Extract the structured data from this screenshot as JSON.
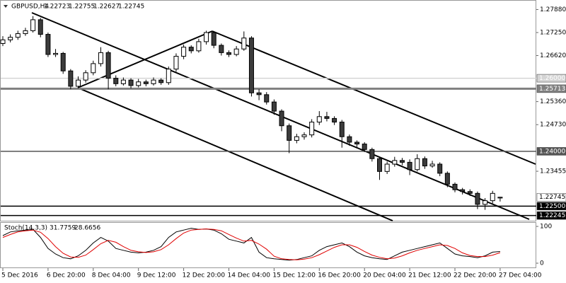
{
  "chart_data": {
    "type": "candlestick",
    "symbol": "GBPUSD,H4",
    "categories": [
      "5 Dec 2016",
      null,
      null,
      null,
      null,
      null,
      "6 Dec 20:00",
      null,
      null,
      null,
      null,
      null,
      "8 Dec 04:00",
      null,
      null,
      null,
      null,
      null,
      "9 Dec 12:00",
      null,
      null,
      null,
      null,
      null,
      "12 Dec 20:00",
      null,
      null,
      null,
      null,
      null,
      "14 Dec 04:00",
      null,
      null,
      null,
      null,
      null,
      "15 Dec 12:00",
      null,
      null,
      null,
      null,
      null,
      "16 Dec 20:00",
      null,
      null,
      null,
      null,
      null,
      "20 Dec 04:00",
      null,
      null,
      null,
      null,
      null,
      "21 Dec 12:00",
      null,
      null,
      null,
      null,
      null,
      "22 Dec 20:00",
      null,
      null,
      null,
      null,
      null,
      "27 Dec 04:00"
    ],
    "open": [
      1.2695,
      1.2705,
      1.2712,
      1.2722,
      1.273,
      1.276,
      1.272,
      1.2665,
      1.2668,
      1.262,
      1.2578,
      1.2595,
      1.2615,
      1.264,
      1.267,
      1.26,
      1.2585,
      1.2595,
      1.258,
      1.259,
      1.2585,
      1.2595,
      1.2588,
      1.2625,
      1.266,
      1.2685,
      1.2675,
      1.27,
      1.2725,
      1.269,
      1.267,
      1.2665,
      1.268,
      1.271,
      1.256,
      1.2555,
      1.2535,
      1.251,
      1.247,
      1.243,
      1.244,
      1.2445,
      1.248,
      1.2495,
      1.249,
      1.248,
      1.244,
      1.2425,
      1.242,
      1.2405,
      1.238,
      1.2345,
      1.2365,
      1.2375,
      1.237,
      1.235,
      1.238,
      1.236,
      1.2365,
      1.234,
      1.231,
      1.2295,
      1.229,
      1.2285,
      1.2255,
      1.2265,
      1.22723
    ],
    "high": [
      1.2715,
      1.272,
      1.273,
      1.2738,
      1.277,
      1.2765,
      1.2725,
      1.268,
      1.2672,
      1.2625,
      1.2605,
      1.2622,
      1.2648,
      1.2685,
      1.2675,
      1.2608,
      1.2602,
      1.26,
      1.2598,
      1.2596,
      1.2602,
      1.26,
      1.2632,
      1.2668,
      1.2692,
      1.269,
      1.2708,
      1.273,
      1.2728,
      1.2695,
      1.2676,
      1.2688,
      1.2728,
      1.2715,
      1.257,
      1.2562,
      1.2542,
      1.2515,
      1.2476,
      1.2448,
      1.2452,
      1.2488,
      1.251,
      1.2508,
      1.2496,
      1.2486,
      1.2446,
      1.243,
      1.2425,
      1.241,
      1.2385,
      1.2372,
      1.2385,
      1.2382,
      1.2378,
      1.2392,
      1.2386,
      1.2374,
      1.237,
      1.2345,
      1.2315,
      1.23,
      1.2296,
      1.229,
      1.2272,
      1.2292,
      1.22755
    ],
    "low": [
      1.2688,
      1.2698,
      1.2705,
      1.2716,
      1.2725,
      1.2712,
      1.2658,
      1.2658,
      1.2612,
      1.257,
      1.2572,
      1.2588,
      1.2608,
      1.2632,
      1.257,
      1.2578,
      1.258,
      1.2572,
      1.2575,
      1.2578,
      1.258,
      1.2582,
      1.2582,
      1.2618,
      1.2652,
      1.2668,
      1.267,
      1.2692,
      1.2682,
      1.2662,
      1.2658,
      1.266,
      1.2675,
      1.255,
      1.254,
      1.2528,
      1.25,
      1.2455,
      1.2395,
      1.2422,
      1.2432,
      1.2438,
      1.2472,
      1.2482,
      1.2472,
      1.241,
      1.2415,
      1.2412,
      1.2398,
      1.2372,
      1.2322,
      1.2338,
      1.2358,
      1.2362,
      1.2335,
      1.2345,
      1.2352,
      1.2355,
      1.2332,
      1.2302,
      1.2288,
      1.2282,
      1.2278,
      1.2242,
      1.224,
      1.2258,
      1.22627
    ],
    "close": [
      1.2705,
      1.2712,
      1.2722,
      1.273,
      1.276,
      1.272,
      1.2665,
      1.2668,
      1.262,
      1.2578,
      1.2595,
      1.2615,
      1.264,
      1.267,
      1.26,
      1.2585,
      1.2595,
      1.258,
      1.259,
      1.2585,
      1.2595,
      1.2588,
      1.2625,
      1.266,
      1.2685,
      1.2675,
      1.27,
      1.2725,
      1.269,
      1.267,
      1.2665,
      1.268,
      1.271,
      1.256,
      1.2555,
      1.2535,
      1.251,
      1.247,
      1.243,
      1.244,
      1.2445,
      1.248,
      1.2495,
      1.249,
      1.248,
      1.244,
      1.2425,
      1.242,
      1.2405,
      1.238,
      1.2345,
      1.2365,
      1.2375,
      1.237,
      1.235,
      1.238,
      1.236,
      1.2365,
      1.234,
      1.231,
      1.2295,
      1.229,
      1.2285,
      1.2255,
      1.2265,
      1.2285,
      1.22745
    ],
    "up_color": "#ffffff",
    "down_color": "#3c3c3c",
    "ylim": [
      1.2814,
      1.2214
    ],
    "yticks": [
      {
        "value": 1.2788,
        "label": "1.27880"
      },
      {
        "value": 1.2725,
        "label": "1.27250"
      },
      {
        "value": 1.2662,
        "label": "1.26620"
      },
      {
        "value": 1.2536,
        "label": "1.25360"
      },
      {
        "value": 1.2473,
        "label": "1.24730"
      },
      {
        "value": 1.23455,
        "label": "1.23455"
      }
    ],
    "levels": [
      {
        "value": 1.26,
        "label": "1.26000",
        "color": "#d4d4d4"
      },
      {
        "value": 1.25713,
        "color": "#808080"
      },
      {
        "value": 1.24,
        "label": "1.24000",
        "color": "#555555"
      },
      {
        "value": 1.225,
        "label": "1.22500",
        "color": "#000000"
      },
      {
        "value": 1.22245,
        "color": "#000000"
      }
    ],
    "indicator": {
      "name": "Stoch(14,3,3)",
      "ylim": [
        100,
        0
      ],
      "yticks": [
        100,
        0
      ],
      "series": [
        {
          "color": "#000000",
          "values": [
            75,
            85,
            88,
            90,
            92,
            70,
            40,
            25,
            15,
            12,
            20,
            35,
            55,
            70,
            60,
            40,
            35,
            30,
            28,
            30,
            35,
            45,
            70,
            85,
            90,
            95,
            92,
            93,
            90,
            80,
            65,
            60,
            55,
            70,
            30,
            15,
            12,
            10,
            8,
            10,
            15,
            20,
            35,
            45,
            50,
            55,
            45,
            30,
            20,
            15,
            12,
            10,
            20,
            30,
            35,
            40,
            45,
            50,
            55,
            40,
            25,
            20,
            18,
            15,
            20,
            30,
            31.7759
          ]
        },
        {
          "color": "#e00000",
          "values": [
            70,
            78,
            85,
            88,
            90,
            84,
            67,
            45,
            27,
            17,
            16,
            22,
            37,
            53,
            62,
            57,
            45,
            35,
            31,
            29,
            31,
            37,
            50,
            67,
            82,
            90,
            92,
            93,
            92,
            88,
            78,
            68,
            60,
            62,
            52,
            38,
            19,
            12,
            10,
            9,
            11,
            15,
            23,
            33,
            43,
            50,
            50,
            43,
            32,
            22,
            16,
            12,
            14,
            20,
            28,
            35,
            40,
            45,
            50,
            48,
            40,
            28,
            21,
            18,
            18,
            22,
            28.6656
          ]
        }
      ]
    }
  }
}
